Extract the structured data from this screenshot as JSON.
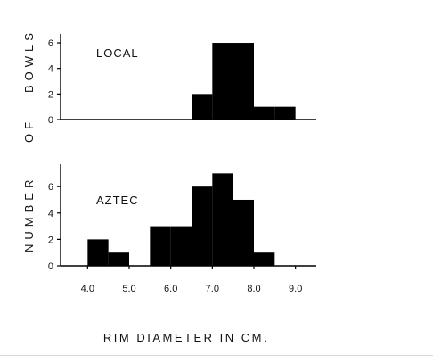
{
  "chart_data": [
    {
      "type": "bar",
      "panel": "top",
      "annotation": "LOCAL",
      "bin_width": 0.5,
      "bins": [
        {
          "x0": 6.5,
          "x1": 7.0,
          "value": 2
        },
        {
          "x0": 7.0,
          "x1": 7.5,
          "value": 6
        },
        {
          "x0": 7.5,
          "x1": 8.0,
          "value": 6
        },
        {
          "x0": 8.0,
          "x1": 8.5,
          "value": 1
        },
        {
          "x0": 8.5,
          "x1": 9.0,
          "value": 1
        }
      ],
      "xlim": [
        3.5,
        9.5
      ],
      "ylim": [
        0,
        6.7
      ],
      "yticks": [
        "0",
        "2",
        "4",
        "6"
      ]
    },
    {
      "type": "bar",
      "panel": "bottom",
      "annotation": "AZTEC",
      "bin_width": 0.5,
      "bins": [
        {
          "x0": 4.0,
          "x1": 4.5,
          "value": 2
        },
        {
          "x0": 4.5,
          "x1": 5.0,
          "value": 1
        },
        {
          "x0": 5.5,
          "x1": 6.0,
          "value": 3
        },
        {
          "x0": 6.0,
          "x1": 6.5,
          "value": 3
        },
        {
          "x0": 6.5,
          "x1": 7.0,
          "value": 6
        },
        {
          "x0": 7.0,
          "x1": 7.5,
          "value": 7
        },
        {
          "x0": 7.5,
          "x1": 8.0,
          "value": 5
        },
        {
          "x0": 8.0,
          "x1": 8.5,
          "value": 1
        }
      ],
      "xlim": [
        3.5,
        9.5
      ],
      "ylim": [
        0,
        7.7
      ],
      "yticks": [
        "0",
        "2",
        "4",
        "6"
      ],
      "xticks": [
        "4.0",
        "5.0",
        "6.0",
        "7.0",
        "8.0",
        "9.0"
      ]
    }
  ],
  "ylabel_lines": [
    "NUMBER",
    "OF",
    "BOWLS"
  ],
  "xlabel": "RIM DIAMETER IN CM.",
  "colors": {
    "bar": "#000000",
    "axis": "#000000",
    "text": "#111111"
  }
}
